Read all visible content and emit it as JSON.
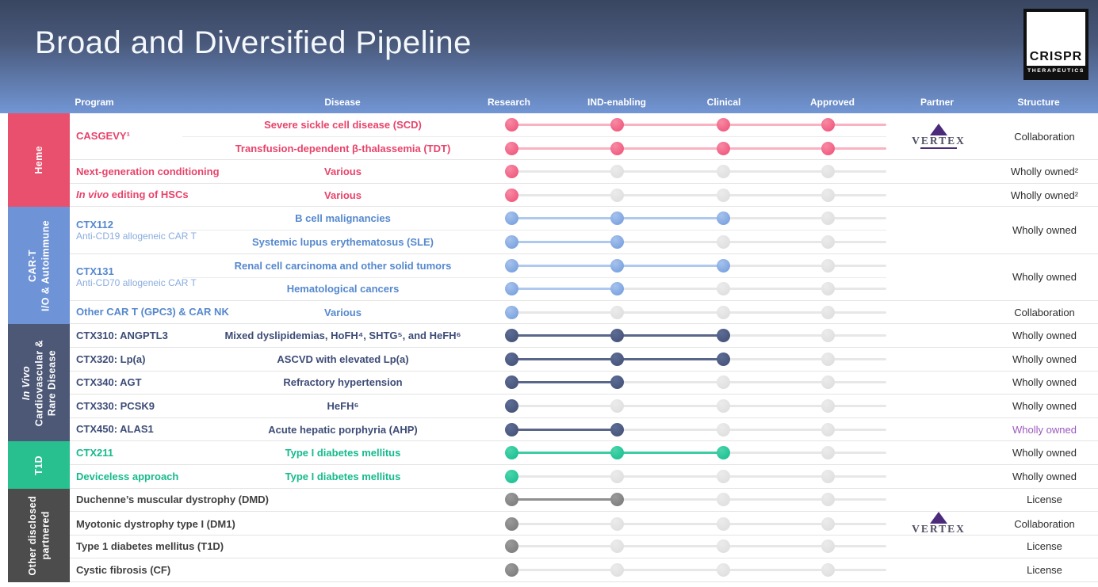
{
  "header": {
    "title": "Broad and Diversified Pipeline",
    "logo": {
      "line1": "CRISPR",
      "line2": "THERAPEUTICS"
    },
    "columns": [
      "Program",
      "Disease",
      "Research",
      "IND-enabling",
      "Clinical",
      "Approved",
      "Partner",
      "Structure"
    ]
  },
  "stage_names": [
    "research",
    "ind-enabling",
    "clinical",
    "approved"
  ],
  "palettes": {
    "heme": {
      "dot": "#EE4D74",
      "dot_light": "#F78AA4",
      "line": "#F8B2C2"
    },
    "cart": {
      "dot": "#6F9ADC",
      "dot_light": "#A6C2EC",
      "line": "#AFC9EE"
    },
    "invivo": {
      "dot": "#404E74",
      "dot_light": "#5D6C94",
      "line": "#596689"
    },
    "t1d": {
      "dot": "#12BC8C",
      "dot_light": "#4CD4AC",
      "line": "#3ECCA2"
    },
    "other": {
      "dot": "#777777",
      "dot_light": "#9A9A9A",
      "line": "#8F8F8F"
    },
    "inactive": {
      "dot": "#DCDCDC",
      "dot_light": "#EBEBEB",
      "line": "#E7E7E7"
    }
  },
  "colors": {
    "heme_text": "#E8436A",
    "cart_text": "#5588CE",
    "cart_subtext": "#8AACDF",
    "invivo_text": "#3D4C77",
    "t1d_text": "#16BA8C",
    "other_text": "#3F3F3F",
    "structure_highlight": "#9B59C0",
    "vertex_purple": "#4B2A7B"
  },
  "partners": {
    "vertex": {
      "name": "VERTEX"
    }
  },
  "sections": [
    {
      "name": "Heme",
      "color": "#E8506E",
      "lines": [
        "Heme"
      ]
    },
    {
      "name": "CAR-T I/O & Autoimmune",
      "color": "#6E93D6",
      "lines": [
        "CAR-T",
        "I/O & Autoimmune"
      ]
    },
    {
      "name": "In Vivo Cardiovascular & Rare Disease",
      "color": "#4D5877",
      "lines": [
        "In Vivo",
        "Cardiovascular &",
        "Rare Disease"
      ]
    },
    {
      "name": "T1D",
      "color": "#29C08F",
      "lines": [
        "T1D"
      ]
    },
    {
      "name": "Other disclosed partnered",
      "color": "#4C4C4C",
      "lines": [
        "Other disclosed",
        "partnered"
      ]
    }
  ],
  "groups": [
    {
      "program": {
        "name": "CASGEVY¹"
      },
      "rows": [
        {
          "disease": "Severe sickle cell disease (SCD)",
          "track": {
            "palette": "heme",
            "stages": 4,
            "tail": true
          }
        },
        {
          "disease": "Transfusion-dependent β-thalassemia (TDT)",
          "track": {
            "palette": "heme",
            "stages": 4,
            "tail": true
          }
        }
      ],
      "partner": "vertex",
      "structure": "Collaboration"
    },
    {
      "program": {
        "name": "Next-generation conditioning"
      },
      "rows": [
        {
          "disease": "Various",
          "track": {
            "palette": "heme",
            "stages": 1,
            "tail": false
          }
        }
      ],
      "structure": "Wholly owned²"
    },
    {
      "program": {
        "name_italic": "In vivo",
        "name_rest": " editing of HSCs"
      },
      "rows": [
        {
          "disease": "Various",
          "track": {
            "palette": "heme",
            "stages": 1,
            "tail": false
          }
        }
      ],
      "structure": "Wholly owned²"
    },
    {
      "program": {
        "name": "CTX112",
        "subtitle": "Anti-CD19 allogeneic CAR T"
      },
      "rows": [
        {
          "disease": "B cell malignancies",
          "track": {
            "palette": "cart",
            "stages": 3,
            "tail": false
          }
        },
        {
          "disease": "Systemic lupus erythematosus (SLE)",
          "track": {
            "palette": "cart",
            "stages": 2,
            "tail": false
          }
        }
      ],
      "structure": "Wholly owned"
    },
    {
      "program": {
        "name": "CTX131",
        "subtitle": "Anti-CD70 allogeneic CAR T"
      },
      "rows": [
        {
          "disease": "Renal cell carcinoma and other solid tumors",
          "track": {
            "palette": "cart",
            "stages": 3,
            "tail": false
          }
        },
        {
          "disease": "Hematological cancers",
          "track": {
            "palette": "cart",
            "stages": 2,
            "tail": false
          }
        }
      ],
      "structure": "Wholly owned"
    },
    {
      "program": {
        "name": "Other CAR T (GPC3) & CAR NK"
      },
      "rows": [
        {
          "disease": "Various",
          "track": {
            "palette": "cart",
            "stages": 1,
            "tail": false
          }
        }
      ],
      "structure": "Collaboration"
    },
    {
      "program": {
        "name": "CTX310: ANGPTL3"
      },
      "rows": [
        {
          "disease": "Mixed dyslipidemias, HoFH⁴, SHTG⁵, and HeFH⁶",
          "track": {
            "palette": "invivo",
            "stages": 3,
            "tail": false
          }
        }
      ],
      "structure": "Wholly owned"
    },
    {
      "program": {
        "name": "CTX320: Lp(a)"
      },
      "rows": [
        {
          "disease": "ASCVD with elevated Lp(a)",
          "track": {
            "palette": "invivo",
            "stages": 3,
            "tail": false
          }
        }
      ],
      "structure": "Wholly owned"
    },
    {
      "program": {
        "name": "CTX340: AGT"
      },
      "rows": [
        {
          "disease": "Refractory hypertension",
          "track": {
            "palette": "invivo",
            "stages": 2,
            "tail": false
          }
        }
      ],
      "structure": "Wholly owned"
    },
    {
      "program": {
        "name": "CTX330: PCSK9"
      },
      "rows": [
        {
          "disease": "HeFH⁶",
          "track": {
            "palette": "invivo",
            "stages": 1,
            "tail": false
          }
        }
      ],
      "structure": "Wholly owned"
    },
    {
      "program": {
        "name": "CTX450: ALAS1"
      },
      "rows": [
        {
          "disease": "Acute hepatic porphyria (AHP)",
          "track": {
            "palette": "invivo",
            "stages": 2,
            "tail": false
          }
        }
      ],
      "structure": "Wholly owned",
      "structure_style": "color:#9B59C0"
    },
    {
      "program": {
        "name": "CTX211"
      },
      "rows": [
        {
          "disease": "Type I diabetes mellitus",
          "track": {
            "palette": "t1d",
            "stages": 3,
            "tail": false
          }
        }
      ],
      "structure": "Wholly owned"
    },
    {
      "program": {
        "name": "Deviceless approach"
      },
      "rows": [
        {
          "disease": "Type I diabetes mellitus",
          "track": {
            "palette": "t1d",
            "stages": 1,
            "tail": false
          }
        }
      ],
      "structure": "Wholly owned"
    },
    {
      "program": {
        "name": "Duchenne’s muscular dystrophy (DMD)"
      },
      "rows": [
        {
          "disease": "",
          "track": {
            "palette": "other",
            "stages": 2,
            "tail": false
          }
        }
      ],
      "structure": "License"
    },
    {
      "program": {
        "name": "Myotonic dystrophy type I (DM1)"
      },
      "rows": [
        {
          "disease": "",
          "track": {
            "palette": "other",
            "stages": 1,
            "tail": false
          }
        }
      ],
      "partner": "vertex",
      "structure": "Collaboration"
    },
    {
      "program": {
        "name": "Type 1 diabetes mellitus (T1D)"
      },
      "rows": [
        {
          "disease": "",
          "track": {
            "palette": "other",
            "stages": 1,
            "tail": false
          }
        }
      ],
      "structure": "License"
    },
    {
      "program": {
        "name": "Cystic fibrosis (CF)"
      },
      "rows": [
        {
          "disease": "",
          "track": {
            "palette": "other",
            "stages": 1,
            "tail": false
          }
        }
      ],
      "structure": "License"
    }
  ]
}
